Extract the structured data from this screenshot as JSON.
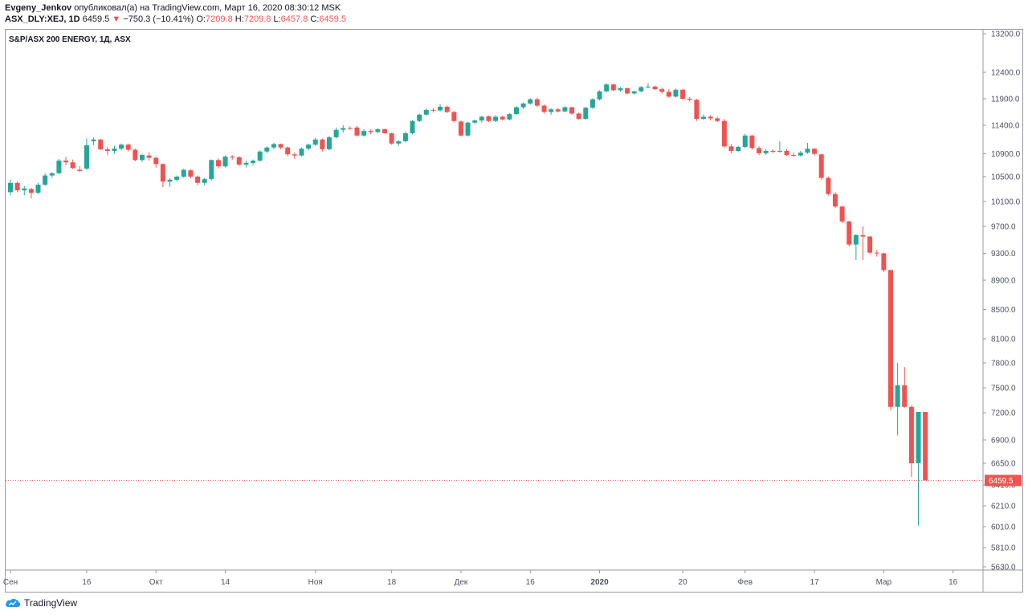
{
  "header": {
    "author": "Evgeny_Jenkov",
    "published_text": "опубликовал(а) на TradingView.com, Март 16, 2020 08:30:12 MSK",
    "symbol": "ASX_DLY:XEJ, 1D",
    "last": "6459.5",
    "arrow": "▼",
    "change": "−750.3 (−10.41%)",
    "o_label": "O:",
    "o_value": "7209.8",
    "h_label": "H:",
    "h_value": "7209.8",
    "l_label": "L:",
    "l_value": "6457.8",
    "c_label": "C:",
    "c_value": "6459.5"
  },
  "footer": {
    "brand": "TradingView"
  },
  "colors": {
    "up": "#26a69a",
    "down": "#ef5350",
    "axis_text": "#4c525e",
    "price_tag_bg": "#ef5350"
  },
  "chart_data": {
    "type": "candlestick",
    "title": "S&P/ASX 200 ENERGY, 1Д, ASX",
    "ylim": [
      5500,
      13300
    ],
    "y_ticks": [
      "13200.0",
      "12400.0",
      "11900.0",
      "11400.0",
      "10900.0",
      "10500.0",
      "10100.0",
      "9700.0",
      "9300.0",
      "8900.0",
      "8500.0",
      "8100.0",
      "7800.0",
      "7500.0",
      "7200.0",
      "6900.0",
      "6650.0",
      "6410.0",
      "6210.0",
      "6010.0",
      "5810.0",
      "5630.0"
    ],
    "x_ticks": [
      {
        "index": 0,
        "label": "Сен"
      },
      {
        "index": 11,
        "label": "16"
      },
      {
        "index": 21,
        "label": "Окт"
      },
      {
        "index": 31,
        "label": "14"
      },
      {
        "index": 44,
        "label": "Ноя"
      },
      {
        "index": 55,
        "label": "18"
      },
      {
        "index": 65,
        "label": "Дек"
      },
      {
        "index": 75,
        "label": "16"
      },
      {
        "index": 85,
        "label": "2020",
        "bold": true
      },
      {
        "index": 97,
        "label": "20"
      },
      {
        "index": 106,
        "label": "Фев"
      },
      {
        "index": 116,
        "label": "17"
      },
      {
        "index": 126,
        "label": "Мар"
      },
      {
        "index": 136,
        "label": "16"
      }
    ],
    "last_price": 6459.5,
    "last_price_label": "6459.5",
    "candles": [
      [
        10250,
        10450,
        10200,
        10400
      ],
      [
        10400,
        10420,
        10250,
        10280
      ],
      [
        10280,
        10350,
        10200,
        10310
      ],
      [
        10300,
        10320,
        10150,
        10240
      ],
      [
        10240,
        10400,
        10220,
        10370
      ],
      [
        10370,
        10560,
        10350,
        10520
      ],
      [
        10520,
        10580,
        10480,
        10560
      ],
      [
        10560,
        10810,
        10540,
        10780
      ],
      [
        10780,
        10850,
        10700,
        10750
      ],
      [
        10750,
        10800,
        10630,
        10650
      ],
      [
        10620,
        10680,
        10580,
        10600
      ],
      [
        10640,
        11170,
        10620,
        11050
      ],
      [
        11120,
        11180,
        11050,
        11150
      ],
      [
        11150,
        11160,
        10960,
        10980
      ],
      [
        10980,
        11020,
        10880,
        10950
      ],
      [
        10950,
        11040,
        10900,
        10990
      ],
      [
        10990,
        11080,
        10960,
        11060
      ],
      [
        11060,
        11080,
        10940,
        10970
      ],
      [
        10970,
        10990,
        10770,
        10790
      ],
      [
        10790,
        10900,
        10760,
        10880
      ],
      [
        10870,
        10930,
        10780,
        10830
      ],
      [
        10830,
        10850,
        10660,
        10720
      ],
      [
        10720,
        10730,
        10330,
        10420
      ],
      [
        10420,
        10480,
        10340,
        10450
      ],
      [
        10450,
        10520,
        10420,
        10500
      ],
      [
        10500,
        10640,
        10480,
        10620
      ],
      [
        10610,
        10630,
        10470,
        10500
      ],
      [
        10500,
        10520,
        10360,
        10400
      ],
      [
        10400,
        10480,
        10360,
        10460
      ],
      [
        10460,
        10800,
        10440,
        10790
      ],
      [
        10790,
        10820,
        10640,
        10680
      ],
      [
        10680,
        10870,
        10660,
        10850
      ],
      [
        10850,
        10880,
        10790,
        10840
      ],
      [
        10840,
        10860,
        10690,
        10710
      ],
      [
        10710,
        10780,
        10660,
        10740
      ],
      [
        10740,
        10800,
        10700,
        10780
      ],
      [
        10780,
        10960,
        10760,
        10940
      ],
      [
        10940,
        11030,
        10910,
        11010
      ],
      [
        11010,
        11090,
        10980,
        11070
      ],
      [
        11070,
        11080,
        10980,
        11010
      ],
      [
        11010,
        11030,
        10860,
        10890
      ],
      [
        10890,
        10920,
        10810,
        10870
      ],
      [
        10870,
        11010,
        10850,
        10990
      ],
      [
        10990,
        11080,
        10960,
        11060
      ],
      [
        11060,
        11180,
        11040,
        11150
      ],
      [
        11150,
        11170,
        10940,
        10980
      ],
      [
        10980,
        11210,
        10960,
        11190
      ],
      [
        11190,
        11360,
        11170,
        11320
      ],
      [
        11320,
        11400,
        11270,
        11350
      ],
      [
        11350,
        11380,
        11320,
        11340
      ],
      [
        11360,
        11390,
        11200,
        11220
      ],
      [
        11220,
        11330,
        11200,
        11300
      ],
      [
        11300,
        11330,
        11240,
        11280
      ],
      [
        11280,
        11350,
        11260,
        11330
      ],
      [
        11330,
        11340,
        11250,
        11260
      ],
      [
        11260,
        11270,
        11060,
        11080
      ],
      [
        11080,
        11140,
        11040,
        11120
      ],
      [
        11120,
        11290,
        11100,
        11260
      ],
      [
        11260,
        11500,
        11240,
        11480
      ],
      [
        11480,
        11620,
        11460,
        11600
      ],
      [
        11600,
        11720,
        11580,
        11690
      ],
      [
        11690,
        11720,
        11640,
        11680
      ],
      [
        11680,
        11800,
        11660,
        11750
      ],
      [
        11750,
        11770,
        11630,
        11650
      ],
      [
        11650,
        11670,
        11450,
        11480
      ],
      [
        11470,
        11490,
        11200,
        11220
      ],
      [
        11220,
        11470,
        11200,
        11450
      ],
      [
        11450,
        11510,
        11420,
        11490
      ],
      [
        11490,
        11580,
        11450,
        11560
      ],
      [
        11570,
        11580,
        11460,
        11480
      ],
      [
        11480,
        11590,
        11460,
        11560
      ],
      [
        11560,
        11580,
        11490,
        11510
      ],
      [
        11510,
        11630,
        11490,
        11610
      ],
      [
        11610,
        11760,
        11590,
        11740
      ],
      [
        11740,
        11830,
        11700,
        11810
      ],
      [
        11810,
        11910,
        11790,
        11890
      ],
      [
        11890,
        11920,
        11740,
        11770
      ],
      [
        11770,
        11790,
        11620,
        11650
      ],
      [
        11650,
        11720,
        11600,
        11700
      ],
      [
        11700,
        11730,
        11640,
        11660
      ],
      [
        11660,
        11760,
        11650,
        11740
      ],
      [
        11740,
        11750,
        11600,
        11620
      ],
      [
        11620,
        11640,
        11500,
        11520
      ],
      [
        11520,
        11750,
        11500,
        11730
      ],
      [
        11730,
        11910,
        11710,
        11890
      ],
      [
        11890,
        12060,
        11870,
        12040
      ],
      [
        12040,
        12190,
        12020,
        12170
      ],
      [
        12170,
        12180,
        12040,
        12060
      ],
      [
        12060,
        12120,
        12030,
        12100
      ],
      [
        12100,
        12110,
        11980,
        12000
      ],
      [
        12000,
        12050,
        11980,
        12040
      ],
      [
        12040,
        12140,
        12020,
        12120
      ],
      [
        12120,
        12190,
        12100,
        12130
      ],
      [
        12130,
        12150,
        12060,
        12080
      ],
      [
        12080,
        12110,
        12000,
        12030
      ],
      [
        12030,
        12080,
        11920,
        11940
      ],
      [
        11940,
        12090,
        11920,
        12070
      ],
      [
        12070,
        12090,
        11880,
        11900
      ],
      [
        11900,
        11930,
        11850,
        11880
      ],
      [
        11880,
        11900,
        11480,
        11520
      ],
      [
        11520,
        11600,
        11500,
        11560
      ],
      [
        11560,
        11590,
        11490,
        11530
      ],
      [
        11530,
        11560,
        11460,
        11480
      ],
      [
        11480,
        11520,
        11000,
        11030
      ],
      [
        11030,
        11070,
        10910,
        10950
      ],
      [
        10950,
        11040,
        10930,
        11020
      ],
      [
        11020,
        11250,
        11000,
        11220
      ],
      [
        11220,
        11230,
        10970,
        11000
      ],
      [
        11000,
        11030,
        10880,
        10910
      ],
      [
        10910,
        10980,
        10880,
        10950
      ],
      [
        10950,
        10980,
        10910,
        10940
      ],
      [
        10940,
        11120,
        10920,
        10950
      ],
      [
        10950,
        10980,
        10860,
        10880
      ],
      [
        10880,
        10920,
        10850,
        10870
      ],
      [
        10870,
        10950,
        10850,
        10920
      ],
      [
        10920,
        11090,
        10900,
        10990
      ],
      [
        10990,
        11000,
        10870,
        10900
      ],
      [
        10890,
        10900,
        10450,
        10480
      ],
      [
        10480,
        10500,
        10200,
        10220
      ],
      [
        10220,
        10250,
        10000,
        10020
      ],
      [
        10020,
        10030,
        9750,
        9780
      ],
      [
        9780,
        9790,
        9400,
        9430
      ],
      [
        9430,
        9590,
        9200,
        9570
      ],
      [
        9570,
        9700,
        9200,
        9550
      ],
      [
        9550,
        9560,
        9290,
        9310
      ],
      [
        9310,
        9350,
        9250,
        9300
      ],
      [
        9300,
        9310,
        9020,
        9050
      ],
      [
        9050,
        9060,
        7230,
        7270
      ],
      [
        7270,
        7800,
        6950,
        7530
      ],
      [
        7530,
        7750,
        7260,
        7270
      ],
      [
        7270,
        7290,
        6500,
        6650
      ],
      [
        6650,
        7210,
        6020,
        7210
      ],
      [
        7210,
        7210,
        6458,
        6459.5
      ]
    ]
  }
}
